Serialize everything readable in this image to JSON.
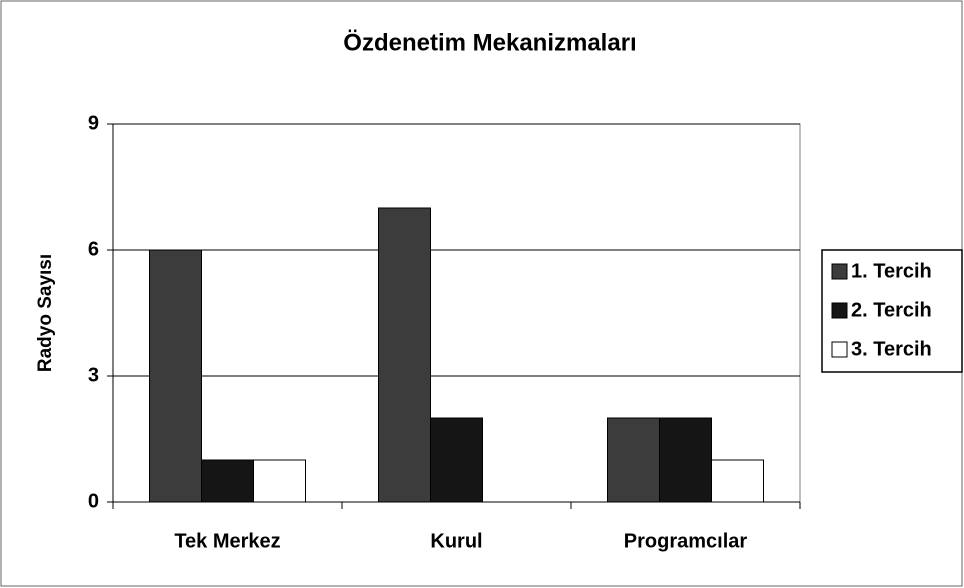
{
  "chart_data": {
    "type": "bar",
    "title": "Özdenetim Mekanizmaları",
    "y_label": "Radyo Sayısı",
    "categories": [
      "Tek Merkez",
      "Kurul",
      "Programcılar"
    ],
    "series": [
      {
        "name": "1. Tercih",
        "color": "#3c3c3c",
        "values": [
          6,
          7,
          2
        ]
      },
      {
        "name": "2. Tercih",
        "color": "#151515",
        "values": [
          1,
          2,
          2
        ]
      },
      {
        "name": "3. Tercih",
        "color": "#ffffff",
        "values": [
          1,
          0,
          1
        ]
      }
    ],
    "ylim": [
      0,
      9
    ],
    "yticks": [
      0,
      3,
      6,
      9
    ],
    "grid": true,
    "legend": "right"
  }
}
